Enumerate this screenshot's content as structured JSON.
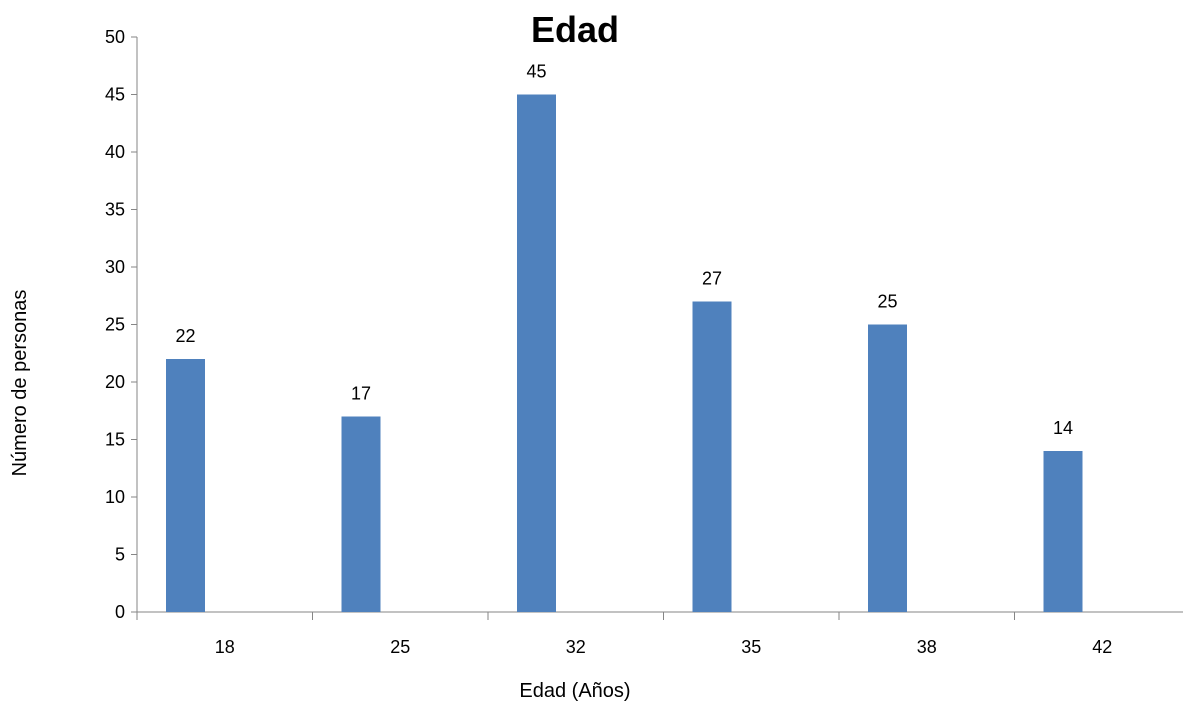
{
  "chart_data": {
    "type": "bar",
    "title": "Edad",
    "xlabel": "Edad (Años)",
    "ylabel": "Número de personas",
    "categories": [
      "18",
      "25",
      "32",
      "35",
      "38",
      "42"
    ],
    "values": [
      22,
      17,
      45,
      27,
      25,
      14
    ],
    "ylim": [
      0,
      50
    ],
    "yticks": [
      0,
      5,
      10,
      15,
      20,
      25,
      30,
      35,
      40,
      45,
      50
    ],
    "grid": false,
    "legend": "none",
    "bar_color": "#4F81BD"
  }
}
